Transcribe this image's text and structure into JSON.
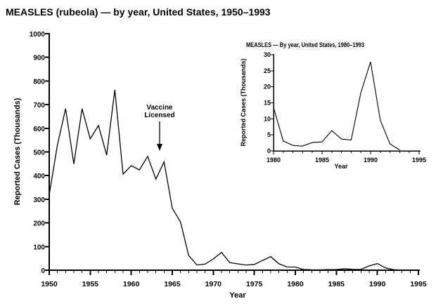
{
  "page": {
    "title": "MEASLES (rubeola) — by year, United States, 1950–1993",
    "background": "#ffffff",
    "line_color": "#000000"
  },
  "annotation": {
    "text_lines": [
      "Vaccine",
      "Licensed"
    ],
    "arrow_direction": "down",
    "arrow_target_year": 1963
  },
  "chart_data": [
    {
      "id": "main",
      "type": "line",
      "title": "MEASLES (rubeola) — by year, United States, 1950–1993",
      "xlabel": "Year",
      "ylabel": "Reported Cases (Thousands)",
      "xlim": [
        1950,
        1995
      ],
      "ylim": [
        0,
        1000
      ],
      "x_major_ticks": [
        1950,
        1955,
        1960,
        1965,
        1970,
        1975,
        1980,
        1985,
        1990,
        1995
      ],
      "x_minor_tick_interval": 1,
      "y_ticks": [
        0,
        100,
        200,
        300,
        400,
        500,
        600,
        700,
        800,
        900,
        1000
      ],
      "grid": false,
      "legend": false,
      "line_color": "#000000",
      "x": [
        1950,
        1951,
        1952,
        1953,
        1954,
        1955,
        1956,
        1957,
        1958,
        1959,
        1960,
        1961,
        1962,
        1963,
        1964,
        1965,
        1966,
        1967,
        1968,
        1969,
        1970,
        1971,
        1972,
        1973,
        1974,
        1975,
        1976,
        1977,
        1978,
        1979,
        1980,
        1981,
        1982,
        1983,
        1984,
        1985,
        1986,
        1987,
        1988,
        1989,
        1990,
        1991,
        1992,
        1993
      ],
      "values": [
        319.1,
        530.1,
        683.1,
        449.1,
        682.7,
        555.2,
        611.9,
        486.8,
        763.1,
        406.2,
        441.7,
        423.9,
        481.5,
        385.2,
        458.1,
        261.9,
        204.1,
        62.7,
        22.2,
        25.8,
        47.4,
        75.3,
        32.3,
        26.7,
        22.1,
        24.4,
        41.1,
        57.3,
        26.9,
        13.6,
        13.5,
        3.1,
        1.7,
        1.5,
        2.6,
        2.8,
        6.3,
        3.7,
        3.4,
        18.2,
        27.8,
        9.6,
        2.2,
        0.3
      ]
    },
    {
      "id": "inset",
      "type": "line",
      "title": "MEASLES — By year, United States, 1980–1993",
      "xlabel": "Year",
      "ylabel": "Reported Cases (Thousands)",
      "xlim": [
        1980,
        1995
      ],
      "ylim": [
        0,
        30
      ],
      "x_major_ticks": [
        1980,
        1985,
        1990,
        1995
      ],
      "x_minor_tick_interval": 1,
      "y_ticks": [
        0,
        5,
        10,
        15,
        20,
        25,
        30
      ],
      "grid": false,
      "legend": false,
      "line_color": "#000000",
      "x": [
        1980,
        1981,
        1982,
        1983,
        1984,
        1985,
        1986,
        1987,
        1988,
        1989,
        1990,
        1991,
        1992,
        1993
      ],
      "values": [
        13.5,
        3.1,
        1.7,
        1.5,
        2.6,
        2.8,
        6.3,
        3.7,
        3.4,
        18.2,
        27.8,
        9.6,
        2.2,
        0.3
      ]
    }
  ]
}
